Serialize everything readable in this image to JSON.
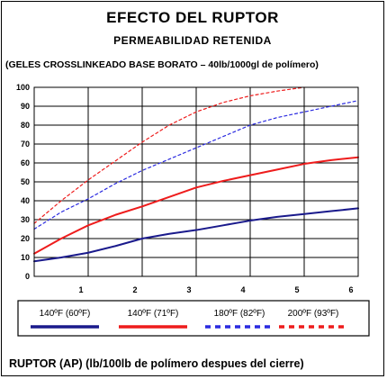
{
  "chart_data": {
    "type": "line",
    "title": "EFECTO DEL RUPTOR",
    "subtitle": "PERMEABILIDAD RETENIDA",
    "subtitle2": "(GELES CROSSLINKEADO BASE BORATO – 40lb/1000gl  de polímero)",
    "xlabel": "RUPTOR (AP) (lb/100lb de polímero despues del cierre)",
    "ylabel": "",
    "xlim": [
      0,
      6
    ],
    "ylim": [
      0,
      100
    ],
    "x_ticks": [
      1,
      2,
      3,
      4,
      5,
      6
    ],
    "y_ticks": [
      0,
      10,
      20,
      30,
      40,
      50,
      60,
      70,
      80,
      90,
      100
    ],
    "grid": true,
    "legend_position": "bottom",
    "series": [
      {
        "name": "140ºF (60ºF)",
        "color": "#1a1a8c",
        "dash": "solid",
        "x": [
          0,
          0.5,
          1,
          1.5,
          2,
          2.5,
          3,
          3.5,
          4,
          4.5,
          5,
          5.5,
          6
        ],
        "y": [
          8,
          10,
          12.5,
          16,
          20,
          22.5,
          24.5,
          27,
          29.5,
          31.5,
          33,
          34.5,
          36
        ]
      },
      {
        "name": "140ºF (71ºF)",
        "color": "#ee1c1c",
        "dash": "solid",
        "x": [
          0,
          0.5,
          1,
          1.5,
          2,
          2.5,
          3,
          3.5,
          4,
          4.5,
          5,
          5.5,
          6
        ],
        "y": [
          12,
          20,
          27,
          32.5,
          37,
          42,
          47,
          50.5,
          53.5,
          56.5,
          59.5,
          61.5,
          63
        ]
      },
      {
        "name": "180ºF (82ºF)",
        "color": "#2a2ae0",
        "dash": "dashed",
        "x": [
          0,
          0.5,
          1,
          1.5,
          2,
          2.5,
          3,
          3.5,
          4,
          4.5,
          5,
          5.5,
          6
        ],
        "y": [
          25,
          34,
          41,
          49,
          56,
          62,
          68,
          74,
          80,
          84,
          87,
          90,
          93
        ]
      },
      {
        "name": "200ºF (93ºF)",
        "color": "#ee1c1c",
        "dash": "dashed",
        "x": [
          0,
          0.5,
          1,
          1.5,
          2,
          2.5,
          3,
          3.5,
          4,
          4.5,
          5
        ],
        "y": [
          28,
          40,
          51,
          61,
          71,
          80,
          87,
          92,
          95.5,
          98,
          100
        ]
      }
    ]
  }
}
